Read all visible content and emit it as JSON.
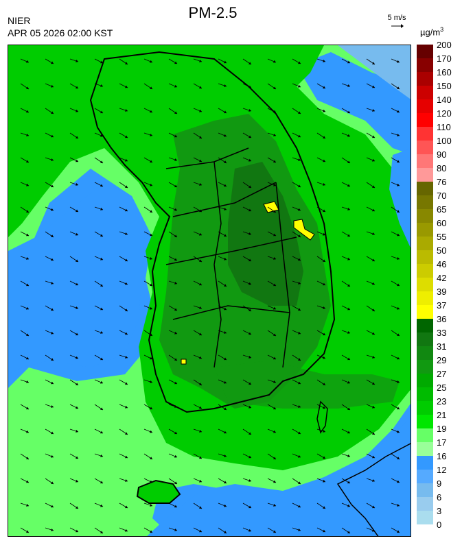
{
  "header": {
    "organization": "NIER",
    "datetime": "APR 05 2026 02:00 KST",
    "title": "PM-2.5",
    "wind_reference_label": "5 m/s",
    "unit_prefix": "µg/m",
    "unit_exponent": "3"
  },
  "colorbar": {
    "labels": [
      "200",
      "170",
      "160",
      "150",
      "140",
      "120",
      "110",
      "100",
      "90",
      "80",
      "76",
      "70",
      "65",
      "60",
      "55",
      "50",
      "46",
      "42",
      "39",
      "37",
      "36",
      "33",
      "31",
      "29",
      "27",
      "25",
      "23",
      "21",
      "19",
      "17",
      "16",
      "12",
      "9",
      "6",
      "3",
      "0"
    ],
    "colors": [
      "#660000",
      "#880000",
      "#aa0000",
      "#cc0000",
      "#e60000",
      "#ff0000",
      "#ff3333",
      "#ff5555",
      "#ff7777",
      "#ff9999",
      "#666600",
      "#777700",
      "#888800",
      "#999900",
      "#aaaa00",
      "#bbbb00",
      "#cccc00",
      "#dddd00",
      "#eeee00",
      "#ffff00",
      "#006600",
      "#117711",
      "#118811",
      "#119911",
      "#00aa00",
      "#00bb00",
      "#00cc00",
      "#00e600",
      "#66ff66",
      "#99ff99",
      "#3399ff",
      "#55aaff",
      "#77bbee",
      "#99ccee",
      "#aaddee"
    ]
  },
  "map": {
    "colors": {
      "sea": "#3399ff",
      "land_mid": "#00cc00",
      "land_dark": "#119911",
      "land_darker": "#117711",
      "light": "#66ff66",
      "coast": "#000000",
      "hotspot": "#ffff00"
    },
    "wind_direction": "north-west to south-east"
  }
}
